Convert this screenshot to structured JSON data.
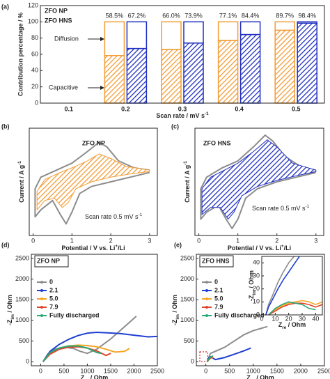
{
  "chart_data": [
    {
      "type": "bar",
      "panel": "(a)",
      "categories": [
        "0.1",
        "0.2",
        "0.3",
        "0.4",
        "0.5"
      ],
      "series": [
        {
          "name": "ZFO NP",
          "color": "#f39c35",
          "values": [
            null,
            58.5,
            66.0,
            77.1,
            89.7
          ],
          "diffusion": [
            null,
            41.5,
            34.0,
            22.9,
            10.3
          ],
          "value_labels": [
            null,
            "58.5%",
            "66.0%",
            "77.1%",
            "89.7%"
          ]
        },
        {
          "name": "ZFO HNS",
          "color": "#1f2fc0",
          "values": [
            null,
            67.2,
            73.9,
            84.4,
            98.4
          ],
          "diffusion": [
            null,
            32.8,
            26.1,
            15.6,
            1.6
          ],
          "value_labels": [
            null,
            "67.2%",
            "73.9%",
            "84.4%",
            "98.4%"
          ]
        }
      ],
      "annotations": [
        "Diffusion",
        "Capacitive"
      ],
      "xlabel": [
        {
          "text": "Scan rate / mV s"
        },
        {
          "text": "-1",
          "sup": true
        }
      ],
      "ylabel": "Contribution percentage / %",
      "ylim": [
        0,
        120
      ],
      "yticks": [
        0,
        20,
        40,
        60,
        80,
        100,
        120
      ]
    },
    {
      "type": "line",
      "panel": "(b)",
      "label": "ZFO NP",
      "label_color": "#f39c35",
      "note": [
        {
          "text": "Scan rate 0.5 mV s"
        },
        {
          "text": "-1",
          "sup": true
        }
      ],
      "xlabel": [
        {
          "text": "Potential / V vs. Li"
        },
        {
          "text": "+",
          "sup": true
        },
        {
          "text": "/Li"
        }
      ],
      "ylabel": [
        {
          "text": "Current / A g"
        },
        {
          "text": "-1",
          "sup": true
        }
      ],
      "xlim": [
        -0.1,
        3.2
      ],
      "ylim": [
        -1.3,
        1.0
      ],
      "xticks": [
        0,
        1,
        2,
        3
      ],
      "series": [
        {
          "color": "#8c8c8c",
          "x": [
            3.0,
            2.5,
            2.0,
            1.5,
            1.2,
            1.0,
            0.85,
            0.7,
            0.5,
            0.2,
            0.05,
            0.05,
            0.2,
            0.6,
            1.0,
            1.4,
            1.7,
            1.9,
            2.2,
            2.6,
            3.0
          ],
          "values": [
            0.05,
            -0.05,
            -0.15,
            -0.25,
            -0.4,
            -0.8,
            -1.05,
            -0.85,
            -0.55,
            -0.75,
            -0.9,
            -0.3,
            -0.05,
            0.1,
            0.25,
            0.5,
            0.7,
            0.6,
            0.3,
            0.15,
            0.1
          ]
        },
        {
          "color": "#f39c35",
          "fill": true,
          "x": [
            3.0,
            2.5,
            2.0,
            1.5,
            1.1,
            0.9,
            0.75,
            0.55,
            0.3,
            0.1,
            0.1,
            0.3,
            0.7,
            1.0,
            1.4,
            1.7,
            2.0,
            2.4,
            3.0
          ],
          "values": [
            0.07,
            0.02,
            -0.05,
            -0.15,
            -0.3,
            -0.6,
            -0.7,
            -0.5,
            -0.55,
            -0.75,
            -0.35,
            -0.1,
            0.05,
            0.15,
            0.3,
            0.45,
            0.35,
            0.18,
            0.1
          ]
        }
      ]
    },
    {
      "type": "line",
      "panel": "(c)",
      "label": "ZFO HNS",
      "label_color": "#1f2fc0",
      "note": [
        {
          "text": "Scan rate 0.5 mV s"
        },
        {
          "text": "-1",
          "sup": true
        }
      ],
      "xlabel": [
        {
          "text": "Potential / V vs. Li"
        },
        {
          "text": "+",
          "sup": true
        },
        {
          "text": "/Li"
        }
      ],
      "ylabel": [
        {
          "text": "Current / A g"
        },
        {
          "text": "-1",
          "sup": true
        }
      ],
      "xlim": [
        -0.1,
        3.2
      ],
      "ylim": [
        -1.3,
        1.0
      ],
      "xticks": [
        0,
        1,
        2,
        3
      ],
      "series": [
        {
          "color": "#8c8c8c",
          "x": [
            3.0,
            2.5,
            2.0,
            1.5,
            1.2,
            1.0,
            0.85,
            0.7,
            0.5,
            0.2,
            0.05,
            0.05,
            0.2,
            0.6,
            1.0,
            1.4,
            1.7,
            1.9,
            2.2,
            2.6,
            3.0
          ],
          "values": [
            0.05,
            -0.05,
            -0.15,
            -0.3,
            -0.5,
            -0.95,
            -1.15,
            -0.95,
            -0.65,
            -0.8,
            -0.95,
            -0.3,
            -0.05,
            0.15,
            0.3,
            0.6,
            0.85,
            0.72,
            0.4,
            0.18,
            0.1
          ]
        },
        {
          "color": "#1f2fc0",
          "fill": true,
          "x": [
            3.0,
            2.5,
            2.0,
            1.5,
            1.1,
            0.9,
            0.75,
            0.55,
            0.3,
            0.08,
            0.08,
            0.3,
            0.7,
            1.0,
            1.4,
            1.75,
            2.0,
            2.4,
            3.0
          ],
          "values": [
            0.07,
            -0.02,
            -0.12,
            -0.25,
            -0.45,
            -0.8,
            -0.95,
            -0.7,
            -0.7,
            -0.85,
            -0.3,
            -0.05,
            0.12,
            0.25,
            0.5,
            0.75,
            0.6,
            0.25,
            0.1
          ]
        }
      ]
    },
    {
      "type": "line",
      "panel": "(d)",
      "legend_title": "ZFO NP",
      "legend": "upper left",
      "xlabel": [
        {
          "text": "Z"
        },
        {
          "text": "re",
          "sub": true
        },
        {
          "text": " / Ohm"
        }
      ],
      "ylabel": [
        {
          "text": "-Z"
        },
        {
          "text": "im",
          "sub": true
        },
        {
          "text": " / Ohm"
        }
      ],
      "xlim": [
        -200,
        2500
      ],
      "ylim": [
        -100,
        2600
      ],
      "xticks": [
        0,
        500,
        1000,
        1500,
        2000,
        2500
      ],
      "yticks": [
        0,
        500,
        1000,
        1500,
        2000,
        2500
      ],
      "series": [
        {
          "name": "0",
          "color": "#8c8c8c",
          "x": [
            50,
            150,
            300,
            500,
            700,
            850,
            1000,
            1200,
            1500,
            1800,
            2050
          ],
          "values": [
            0,
            180,
            300,
            350,
            320,
            250,
            200,
            300,
            550,
            850,
            1100
          ]
        },
        {
          "name": "2.1",
          "color": "#1f3fd0",
          "x": [
            50,
            200,
            400,
            600,
            800,
            1000,
            1200,
            1400,
            1700,
            2000,
            2300,
            2500
          ],
          "values": [
            0,
            250,
            420,
            540,
            630,
            690,
            710,
            700,
            680,
            640,
            600,
            610
          ]
        },
        {
          "name": "5.0",
          "color": "#f5a623",
          "x": [
            50,
            200,
            400,
            600,
            800,
            1000,
            1200,
            1400,
            1600,
            1800,
            1900
          ],
          "values": [
            0,
            200,
            320,
            380,
            400,
            390,
            360,
            300,
            230,
            250,
            320
          ]
        },
        {
          "name": "7.9",
          "color": "#e0452b",
          "x": [
            50,
            200,
            400,
            600,
            800,
            1000,
            1200,
            1400,
            1500
          ],
          "values": [
            0,
            180,
            300,
            350,
            360,
            330,
            260,
            150,
            200
          ]
        },
        {
          "name": "Fully discharged",
          "color": "#2aa876",
          "x": [
            50,
            200,
            400,
            600,
            800,
            1000,
            1200,
            1300
          ],
          "values": [
            0,
            220,
            330,
            380,
            380,
            330,
            220,
            200
          ]
        }
      ]
    },
    {
      "type": "line",
      "panel": "(e)",
      "legend_title": "ZFO HNS",
      "legend": "upper left",
      "xlabel": [
        {
          "text": "Z"
        },
        {
          "text": "re",
          "sub": true
        },
        {
          "text": " / Ohm"
        }
      ],
      "ylabel": [
        {
          "text": "-Z"
        },
        {
          "text": "im",
          "sub": true
        },
        {
          "text": " / Ohm"
        }
      ],
      "xlim": [
        -200,
        2500
      ],
      "ylim": [
        -100,
        2600
      ],
      "xticks": [
        0,
        500,
        1000,
        1500,
        2000,
        2500
      ],
      "yticks": [
        0,
        500,
        1000,
        1500,
        2000,
        2500
      ],
      "series": [
        {
          "name": "0",
          "color": "#8c8c8c",
          "x": [
            30,
            60,
            100,
            200,
            400,
            600,
            800,
            1000,
            1300
          ],
          "values": [
            0,
            100,
            200,
            250,
            350,
            500,
            650,
            750,
            850
          ]
        },
        {
          "name": "2.1",
          "color": "#1f3fd0",
          "x": [
            30,
            60,
            100,
            200,
            400,
            600,
            800,
            950
          ],
          "values": [
            0,
            80,
            120,
            50,
            100,
            180,
            260,
            330
          ]
        },
        {
          "name": "5.0",
          "color": "#f5a623",
          "x": [
            30,
            60,
            100,
            150
          ],
          "values": [
            0,
            40,
            80,
            100
          ]
        },
        {
          "name": "7.9",
          "color": "#e0452b",
          "x": [
            30,
            60,
            100,
            150
          ],
          "values": [
            0,
            50,
            90,
            120
          ]
        },
        {
          "name": "Fully discharged",
          "color": "#2aa876",
          "x": [
            30,
            60,
            100,
            150
          ],
          "values": [
            0,
            60,
            110,
            140
          ]
        }
      ]
    },
    {
      "type": "line",
      "xlabel": [
        {
          "text": "Z"
        },
        {
          "text": "re",
          "sub": true
        },
        {
          "text": " / Ohm"
        }
      ],
      "ylabel": [
        {
          "text": "-Z"
        },
        {
          "text": "im",
          "sub": true
        },
        {
          "text": " / Ohm"
        }
      ],
      "xlim": [
        0,
        45
      ],
      "ylim": [
        0,
        45
      ],
      "xticks": [
        0,
        10,
        20,
        30,
        40
      ],
      "yticks": [
        0,
        10,
        20,
        30,
        40
      ],
      "series": [
        {
          "color": "#8c8c8c",
          "x": [
            3,
            5,
            8,
            12,
            16,
            20,
            24
          ],
          "values": [
            0,
            8,
            15,
            25,
            33,
            40,
            45
          ]
        },
        {
          "color": "#1f3fd0",
          "x": [
            3,
            5,
            8,
            12,
            16,
            20,
            24,
            28
          ],
          "values": [
            0,
            6,
            12,
            20,
            27,
            33,
            39,
            45
          ]
        },
        {
          "color": "#f5a623",
          "x": [
            5,
            10,
            15,
            20,
            25,
            30,
            35,
            40,
            45
          ],
          "values": [
            0,
            4,
            7,
            9,
            10,
            11,
            10,
            8,
            10
          ]
        },
        {
          "color": "#e0452b",
          "x": [
            5,
            10,
            15,
            20,
            25,
            30,
            35,
            40,
            45
          ],
          "values": [
            0,
            3,
            6,
            8,
            9,
            9,
            8,
            6,
            8
          ]
        },
        {
          "color": "#2aa876",
          "x": [
            5,
            10,
            15,
            20,
            25,
            30,
            35,
            40
          ],
          "values": [
            0,
            5,
            8,
            10,
            9,
            8,
            5,
            4
          ]
        }
      ]
    }
  ]
}
